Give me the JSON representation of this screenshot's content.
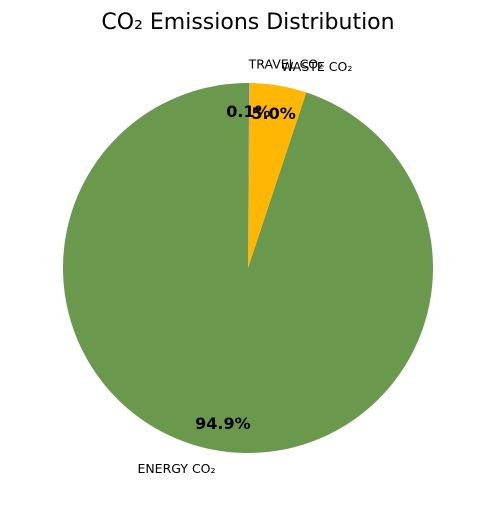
{
  "chart_data": {
    "type": "pie",
    "title": "CO₂ Emissions Distribution",
    "slices": [
      {
        "label": "ENERGY CO₂",
        "value": 94.9,
        "pct_label": "94.9%",
        "color": "#6a994e"
      },
      {
        "label": "WASTE CO₂",
        "value": 5.0,
        "pct_label": "5.0%",
        "color": "#ffb703"
      },
      {
        "label": "TRAVEL CO₂",
        "value": 0.1,
        "pct_label": "0.1%",
        "color": "#4a90c4"
      }
    ],
    "start_angle_deg": 90,
    "direction": "counterclockwise",
    "legend": "none"
  }
}
